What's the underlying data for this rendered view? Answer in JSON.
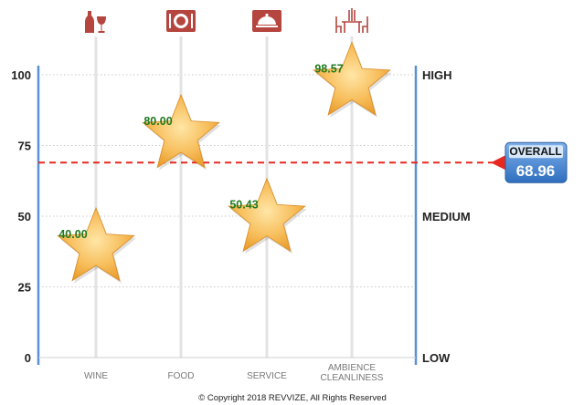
{
  "chart_data": {
    "type": "scatter",
    "marker": "star",
    "categories": [
      "WINE",
      "FOOD",
      "SERVICE",
      "AMBIENCE CLEANLINESS"
    ],
    "category_icons": [
      "wine-bottle-glass-icon",
      "food-plate-icon",
      "service-cloche-icon",
      "dining-table-icon"
    ],
    "values": [
      40.0,
      80.0,
      50.43,
      98.57
    ],
    "value_labels": [
      "40.00",
      "80.00",
      "50.43",
      "98.57"
    ],
    "yticks": [
      0,
      25,
      50,
      75,
      100
    ],
    "ylim": [
      0,
      100
    ],
    "levels": {
      "high": "HIGH",
      "medium": "MEDIUM",
      "low": "LOW"
    },
    "overall": {
      "label": "OVERALL",
      "value": 68.96,
      "value_text": "68.96"
    },
    "grid": "horizontal-dotted",
    "colors": {
      "star": "#f4b44a",
      "value_label": "#1f7a1f",
      "overall_line": "#e8281e",
      "axis": "#5b8fd6",
      "icon": "#b5453f",
      "overall_box": "#3d7fcf"
    }
  },
  "footer": {
    "copyright": "© Copyright 2018 REVVIZE, All Rights Reserved"
  }
}
